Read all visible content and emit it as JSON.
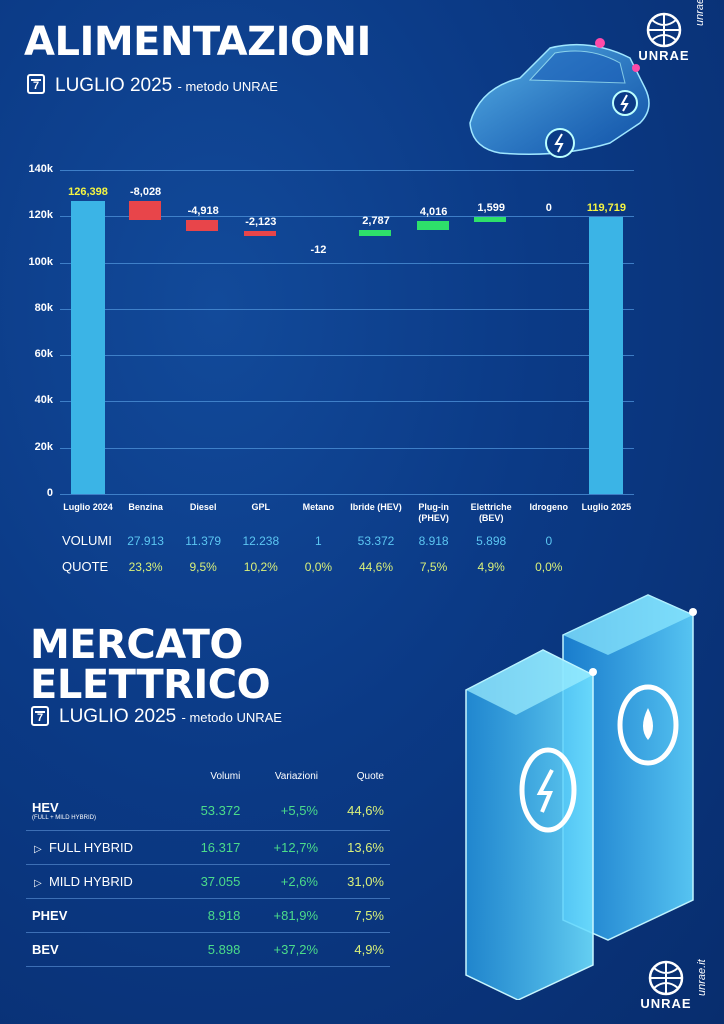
{
  "section1": {
    "title": "ALIMENTAZIONI",
    "calendar_day": "7",
    "period": "LUGLIO 2025",
    "method": "- metodo UNRAE"
  },
  "brand": {
    "name": "UNRAE",
    "site": "unrae.it"
  },
  "chart_data": {
    "type": "bar",
    "subtype": "waterfall",
    "categories": [
      "Luglio 2024",
      "Benzina",
      "Diesel",
      "GPL",
      "Metano",
      "Ibride (HEV)",
      "Plug-in (PHEV)",
      "Elettriche (BEV)",
      "Idrogeno",
      "Luglio 2025"
    ],
    "values": [
      126398,
      -8028,
      -4918,
      -2123,
      -12,
      2787,
      4016,
      1599,
      0,
      119719
    ],
    "value_labels": [
      "126,398",
      "-8,028",
      "-4,918",
      "-2,123",
      "-12",
      "2,787",
      "4,016",
      "1,599",
      "0",
      "119,719"
    ],
    "ylim": [
      0,
      140000
    ],
    "yticks": [
      "0",
      "20k",
      "40k",
      "60k",
      "80k",
      "100k",
      "120k",
      "140k"
    ],
    "grid": true,
    "colors": {
      "total": "#3bb4e6",
      "decrease": "#e8454a",
      "increase": "#2ee06a"
    }
  },
  "table1": {
    "row1_label": "VOLUMI",
    "row2_label": "QUOTE",
    "volumi": [
      "27.913",
      "11.379",
      "12.238",
      "1",
      "53.372",
      "8.918",
      "5.898",
      "0"
    ],
    "quote": [
      "23,3%",
      "9,5%",
      "10,2%",
      "0,0%",
      "44,6%",
      "7,5%",
      "4,9%",
      "0,0%"
    ]
  },
  "section2": {
    "title_line1": "MERCATO",
    "title_line2": "ELETTRICO",
    "calendar_day": "7",
    "period": "LUGLIO 2025",
    "method": "- metodo UNRAE"
  },
  "market_table": {
    "headers": [
      "Volumi",
      "Variazioni",
      "Quote"
    ],
    "rows": [
      {
        "label": "HEV",
        "sublabel": "(FULL + MILD HYBRID)",
        "volumi": "53.372",
        "variazioni": "+5,5%",
        "quote": "44,6%"
      },
      {
        "label": "FULL HYBRID",
        "volumi": "16.317",
        "variazioni": "+12,7%",
        "quote": "13,6%"
      },
      {
        "label": "MILD HYBRID",
        "volumi": "37.055",
        "variazioni": "+2,6%",
        "quote": "31,0%"
      },
      {
        "label": "PHEV",
        "volumi": "8.918",
        "variazioni": "+81,9%",
        "quote": "7,5%"
      },
      {
        "label": "BEV",
        "volumi": "5.898",
        "variazioni": "+37,2%",
        "quote": "4,9%"
      }
    ]
  }
}
